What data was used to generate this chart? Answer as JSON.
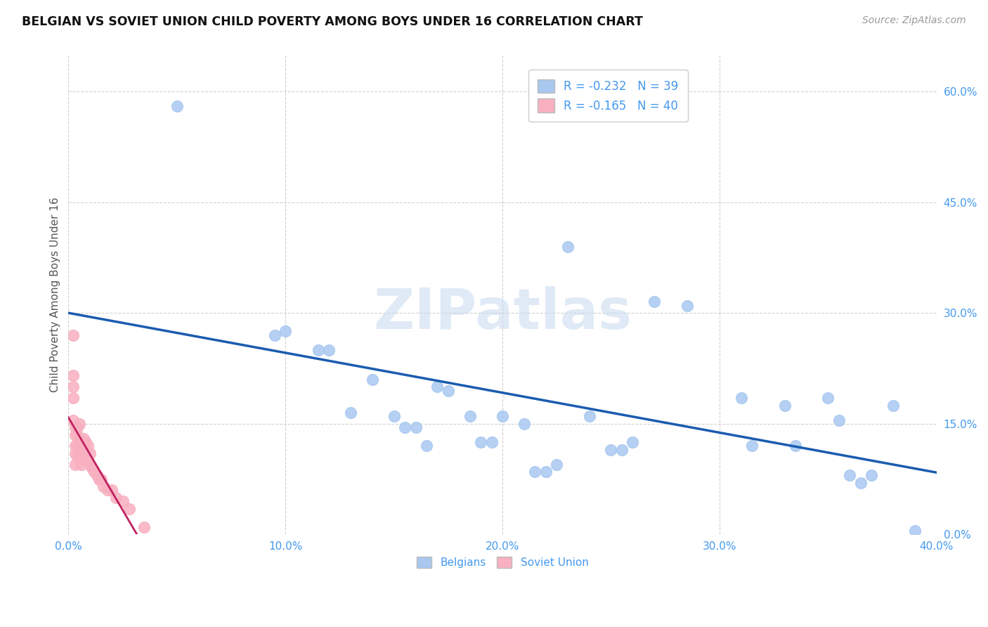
{
  "title": "BELGIAN VS SOVIET UNION CHILD POVERTY AMONG BOYS UNDER 16 CORRELATION CHART",
  "source": "Source: ZipAtlas.com",
  "ylabel": "Child Poverty Among Boys Under 16",
  "xlim": [
    0.0,
    0.4
  ],
  "ylim": [
    0.0,
    0.65
  ],
  "x_ticks": [
    0.0,
    0.1,
    0.2,
    0.3,
    0.4
  ],
  "x_tick_labels": [
    "0.0%",
    "10.0%",
    "20.0%",
    "30.0%",
    "40.0%"
  ],
  "y_ticks_right": [
    0.0,
    0.15,
    0.3,
    0.45,
    0.6
  ],
  "y_tick_labels_right": [
    "0.0%",
    "15.0%",
    "30.0%",
    "45.0%",
    "60.0%"
  ],
  "belgian_R": -0.232,
  "belgian_N": 39,
  "soviet_R": -0.165,
  "soviet_N": 40,
  "belgian_color": "#a8c8f0",
  "soviet_color": "#f8b0c0",
  "trendline_belgian_color": "#1a5cb0",
  "trendline_soviet_color": "#c02060",
  "background_color": "#ffffff",
  "grid_color": "#cccccc",
  "watermark": "ZIPatlas",
  "belgian_x": [
    0.05,
    0.095,
    0.1,
    0.115,
    0.12,
    0.13,
    0.14,
    0.15,
    0.155,
    0.16,
    0.165,
    0.17,
    0.175,
    0.185,
    0.19,
    0.195,
    0.2,
    0.21,
    0.215,
    0.22,
    0.225,
    0.23,
    0.24,
    0.25,
    0.255,
    0.26,
    0.27,
    0.285,
    0.31,
    0.315,
    0.33,
    0.335,
    0.35,
    0.355,
    0.36,
    0.365,
    0.37,
    0.38,
    0.39
  ],
  "belgian_y": [
    0.58,
    0.27,
    0.275,
    0.25,
    0.25,
    0.165,
    0.21,
    0.16,
    0.145,
    0.145,
    0.12,
    0.2,
    0.195,
    0.16,
    0.125,
    0.125,
    0.16,
    0.15,
    0.085,
    0.085,
    0.095,
    0.39,
    0.16,
    0.115,
    0.115,
    0.125,
    0.315,
    0.31,
    0.185,
    0.12,
    0.175,
    0.12,
    0.185,
    0.155,
    0.08,
    0.07,
    0.08,
    0.175,
    0.005
  ],
  "soviet_x": [
    0.002,
    0.002,
    0.002,
    0.002,
    0.002,
    0.003,
    0.003,
    0.003,
    0.003,
    0.003,
    0.004,
    0.004,
    0.004,
    0.004,
    0.005,
    0.005,
    0.005,
    0.006,
    0.006,
    0.006,
    0.007,
    0.007,
    0.008,
    0.008,
    0.009,
    0.009,
    0.01,
    0.01,
    0.011,
    0.012,
    0.013,
    0.014,
    0.015,
    0.016,
    0.018,
    0.02,
    0.022,
    0.025,
    0.028,
    0.035
  ],
  "soviet_y": [
    0.27,
    0.215,
    0.2,
    0.185,
    0.155,
    0.145,
    0.135,
    0.12,
    0.11,
    0.095,
    0.145,
    0.135,
    0.12,
    0.105,
    0.15,
    0.13,
    0.115,
    0.125,
    0.11,
    0.095,
    0.13,
    0.105,
    0.125,
    0.1,
    0.12,
    0.1,
    0.11,
    0.095,
    0.09,
    0.085,
    0.08,
    0.075,
    0.075,
    0.065,
    0.06,
    0.06,
    0.05,
    0.045,
    0.035,
    0.01
  ],
  "legend_belgian_label": "R = -0.232   N = 39",
  "legend_soviet_label": "R = -0.165   N = 40",
  "bottom_legend_belgian": "Belgians",
  "bottom_legend_soviet": "Soviet Union"
}
